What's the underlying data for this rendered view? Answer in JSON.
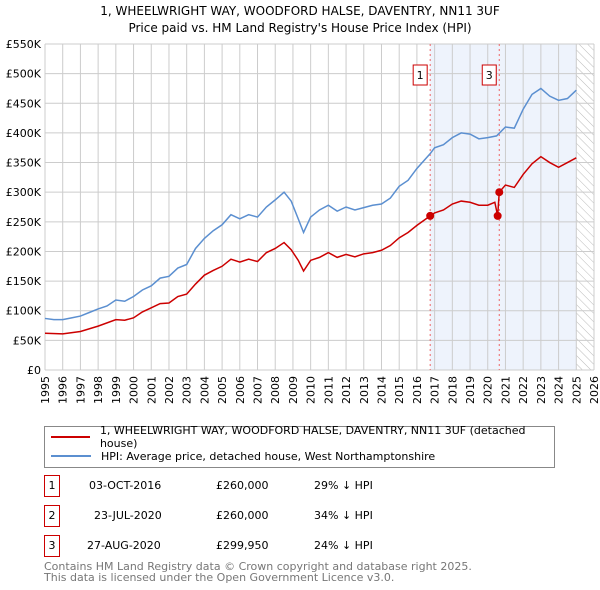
{
  "chart_data": {
    "type": "line",
    "title": "1, WHEELWRIGHT WAY, WOODFORD HALSE, DAVENTRY, NN11 3UF",
    "subtitle": "Price paid vs. HM Land Registry's House Price Index (HPI)",
    "xlim": [
      1995,
      2026
    ],
    "ylim": [
      0,
      550000
    ],
    "x_ticks": [
      "1995",
      "1996",
      "1997",
      "1998",
      "1999",
      "2000",
      "2001",
      "2002",
      "2003",
      "2004",
      "2005",
      "2006",
      "2007",
      "2008",
      "2009",
      "2010",
      "2011",
      "2012",
      "2013",
      "2014",
      "2015",
      "2016",
      "2017",
      "2018",
      "2019",
      "2020",
      "2021",
      "2022",
      "2023",
      "2024",
      "2025",
      "2026"
    ],
    "y_ticks": [
      "£0",
      "£50K",
      "£100K",
      "£150K",
      "£200K",
      "£250K",
      "£300K",
      "£350K",
      "£400K",
      "£450K",
      "£500K",
      "£550K"
    ],
    "grid": true,
    "series": [
      {
        "name": "1, WHEELWRIGHT WAY, WOODFORD HALSE, DAVENTRY, NN11 3UF (detached house)",
        "color": "#cc0000",
        "points": [
          [
            1995,
            62
          ],
          [
            1996,
            61
          ],
          [
            1997,
            65
          ],
          [
            1998,
            74
          ],
          [
            1999,
            85
          ],
          [
            1999.5,
            84
          ],
          [
            2000,
            88
          ],
          [
            2000.5,
            98
          ],
          [
            2001,
            105
          ],
          [
            2001.5,
            112
          ],
          [
            2002,
            113
          ],
          [
            2002.5,
            124
          ],
          [
            2003,
            128
          ],
          [
            2003.5,
            145
          ],
          [
            2004,
            160
          ],
          [
            2004.5,
            168
          ],
          [
            2005,
            175
          ],
          [
            2005.5,
            187
          ],
          [
            2006,
            182
          ],
          [
            2006.5,
            187
          ],
          [
            2007,
            183
          ],
          [
            2007.5,
            198
          ],
          [
            2008,
            205
          ],
          [
            2008.5,
            215
          ],
          [
            2008.9,
            203
          ],
          [
            2009.3,
            185
          ],
          [
            2009.6,
            167
          ],
          [
            2010,
            185
          ],
          [
            2010.5,
            190
          ],
          [
            2011,
            198
          ],
          [
            2011.5,
            190
          ],
          [
            2012,
            195
          ],
          [
            2012.5,
            191
          ],
          [
            2013,
            196
          ],
          [
            2013.5,
            198
          ],
          [
            2014,
            202
          ],
          [
            2014.5,
            210
          ],
          [
            2015,
            223
          ],
          [
            2015.5,
            232
          ],
          [
            2016,
            244
          ],
          [
            2016.75,
            260
          ],
          [
            2017,
            265
          ],
          [
            2017.5,
            270
          ],
          [
            2018,
            280
          ],
          [
            2018.5,
            285
          ],
          [
            2019,
            283
          ],
          [
            2019.5,
            278
          ],
          [
            2020,
            278
          ],
          [
            2020.4,
            283
          ],
          [
            2020.56,
            260
          ],
          [
            2020.65,
            300
          ],
          [
            2021,
            312
          ],
          [
            2021.5,
            308
          ],
          [
            2022,
            330
          ],
          [
            2022.5,
            348
          ],
          [
            2023,
            360
          ],
          [
            2023.5,
            350
          ],
          [
            2024,
            342
          ],
          [
            2024.5,
            350
          ],
          [
            2025,
            358
          ]
        ]
      },
      {
        "name": "HPI: Average price, detached house, West Northamptonshire",
        "color": "#5b8fd0",
        "points": [
          [
            1995,
            87
          ],
          [
            1995.5,
            85
          ],
          [
            1996,
            85
          ],
          [
            1996.5,
            88
          ],
          [
            1997,
            91
          ],
          [
            1997.5,
            97
          ],
          [
            1998,
            103
          ],
          [
            1998.5,
            108
          ],
          [
            1999,
            118
          ],
          [
            1999.5,
            116
          ],
          [
            2000,
            124
          ],
          [
            2000.5,
            135
          ],
          [
            2001,
            142
          ],
          [
            2001.5,
            155
          ],
          [
            2002,
            158
          ],
          [
            2002.5,
            172
          ],
          [
            2003,
            178
          ],
          [
            2003.5,
            205
          ],
          [
            2004,
            222
          ],
          [
            2004.5,
            235
          ],
          [
            2005,
            245
          ],
          [
            2005.5,
            262
          ],
          [
            2006,
            255
          ],
          [
            2006.5,
            262
          ],
          [
            2007,
            258
          ],
          [
            2007.5,
            275
          ],
          [
            2008,
            287
          ],
          [
            2008.5,
            300
          ],
          [
            2008.9,
            285
          ],
          [
            2009.3,
            255
          ],
          [
            2009.6,
            232
          ],
          [
            2010,
            258
          ],
          [
            2010.5,
            270
          ],
          [
            2011,
            278
          ],
          [
            2011.5,
            268
          ],
          [
            2012,
            275
          ],
          [
            2012.5,
            270
          ],
          [
            2013,
            274
          ],
          [
            2013.5,
            278
          ],
          [
            2014,
            280
          ],
          [
            2014.5,
            290
          ],
          [
            2015,
            310
          ],
          [
            2015.5,
            320
          ],
          [
            2016,
            340
          ],
          [
            2016.75,
            365
          ],
          [
            2017,
            375
          ],
          [
            2017.5,
            380
          ],
          [
            2018,
            392
          ],
          [
            2018.5,
            400
          ],
          [
            2019,
            398
          ],
          [
            2019.5,
            390
          ],
          [
            2020,
            392
          ],
          [
            2020.5,
            395
          ],
          [
            2021,
            410
          ],
          [
            2021.5,
            408
          ],
          [
            2022,
            440
          ],
          [
            2022.5,
            465
          ],
          [
            2023,
            475
          ],
          [
            2023.5,
            462
          ],
          [
            2024,
            455
          ],
          [
            2024.5,
            458
          ],
          [
            2025,
            472
          ]
        ]
      }
    ],
    "units_note": "values in £K",
    "sales": [
      {
        "label": "1",
        "year": 2016.75,
        "value": 260
      },
      {
        "label": "2",
        "year": 2020.56,
        "value": 260
      },
      {
        "label": "3",
        "year": 2020.65,
        "value": 299.95
      }
    ],
    "shaded_range": [
      2016.75,
      2025.0
    ],
    "projection_hatch": [
      2025.0,
      2026
    ]
  },
  "legend": {
    "property": "1, WHEELWRIGHT WAY, WOODFORD HALSE, DAVENTRY, NN11 3UF (detached house)",
    "hpi": "HPI: Average price, detached house, West Northamptonshire"
  },
  "transactions": [
    {
      "num": "1",
      "date": "03-OCT-2016",
      "price": "£260,000",
      "hpi": "29% ↓ HPI"
    },
    {
      "num": "2",
      "date": "23-JUL-2020",
      "price": "£260,000",
      "hpi": "34% ↓ HPI"
    },
    {
      "num": "3",
      "date": "27-AUG-2020",
      "price": "£299,950",
      "hpi": "24% ↓ HPI"
    }
  ],
  "footer": {
    "line1": "Contains HM Land Registry data © Crown copyright and database right 2025.",
    "line2": "This data is licensed under the Open Government Licence v3.0."
  }
}
